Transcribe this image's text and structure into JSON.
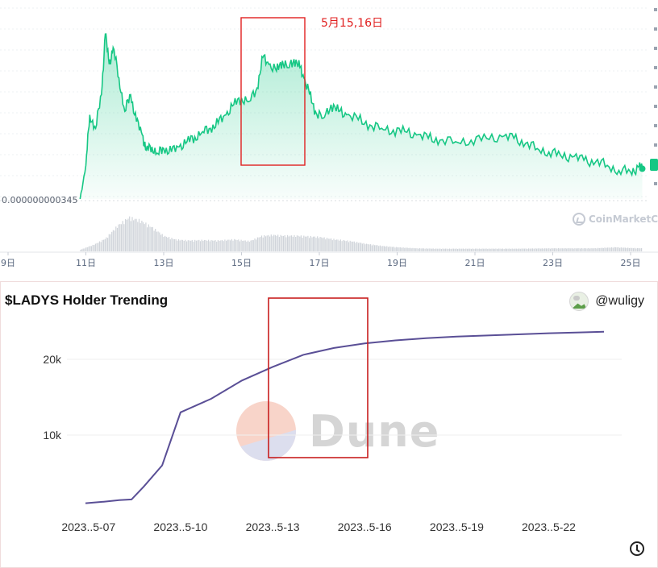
{
  "top_chart": {
    "price_label": "0.000000000345",
    "annotation_text": "5月15,16日",
    "watermark_text": "CoinMarketCap",
    "x_ticks": [
      "9日",
      "11日",
      "13日",
      "15日",
      "17日",
      "19日",
      "21日",
      "23日",
      "25日"
    ],
    "colors": {
      "line": "#16c784",
      "fill": "#16c784",
      "annotation": "#e02020",
      "volume": "#d0d4da"
    }
  },
  "bottom_chart": {
    "title": "$LADYS Holder Trending",
    "username": "@wuligy",
    "watermark_text": "Dune",
    "colors": {
      "line": "#5a4f96",
      "highlight": "#c81e1e"
    }
  },
  "chart_data": [
    {
      "type": "area",
      "title": "",
      "xlabel": "",
      "ylabel": "",
      "categories": [
        "9日",
        "11日",
        "13日",
        "15日",
        "17日",
        "19日",
        "21日",
        "23日",
        "25日"
      ],
      "x_day_range": [
        9,
        25.3
      ],
      "price_points": [
        [
          10.85,
          0.0
        ],
        [
          11.0,
          0.2
        ],
        [
          11.1,
          0.5
        ],
        [
          11.25,
          0.42
        ],
        [
          11.4,
          0.62
        ],
        [
          11.5,
          0.98
        ],
        [
          11.6,
          0.8
        ],
        [
          11.7,
          0.9
        ],
        [
          11.85,
          0.72
        ],
        [
          12.0,
          0.52
        ],
        [
          12.15,
          0.62
        ],
        [
          12.3,
          0.46
        ],
        [
          12.45,
          0.38
        ],
        [
          12.55,
          0.29
        ],
        [
          12.7,
          0.31
        ],
        [
          12.85,
          0.27
        ],
        [
          13.0,
          0.3
        ],
        [
          13.2,
          0.28
        ],
        [
          13.4,
          0.31
        ],
        [
          13.6,
          0.34
        ],
        [
          13.8,
          0.37
        ],
        [
          14.0,
          0.4
        ],
        [
          14.2,
          0.42
        ],
        [
          14.4,
          0.45
        ],
        [
          14.6,
          0.5
        ],
        [
          14.8,
          0.56
        ],
        [
          15.0,
          0.6
        ],
        [
          15.2,
          0.58
        ],
        [
          15.4,
          0.66
        ],
        [
          15.55,
          0.84
        ],
        [
          15.7,
          0.8
        ],
        [
          15.9,
          0.76
        ],
        [
          16.05,
          0.82
        ],
        [
          16.2,
          0.78
        ],
        [
          16.35,
          0.83
        ],
        [
          16.5,
          0.78
        ],
        [
          16.6,
          0.72
        ],
        [
          16.75,
          0.62
        ],
        [
          16.9,
          0.52
        ],
        [
          17.1,
          0.48
        ],
        [
          17.3,
          0.56
        ],
        [
          17.5,
          0.52
        ],
        [
          17.7,
          0.5
        ],
        [
          18.0,
          0.47
        ],
        [
          18.3,
          0.44
        ],
        [
          18.6,
          0.42
        ],
        [
          18.9,
          0.41
        ],
        [
          19.2,
          0.4
        ],
        [
          19.5,
          0.38
        ],
        [
          19.8,
          0.36
        ],
        [
          20.1,
          0.35
        ],
        [
          20.5,
          0.34
        ],
        [
          20.9,
          0.35
        ],
        [
          21.3,
          0.36
        ],
        [
          21.7,
          0.37
        ],
        [
          22.0,
          0.36
        ],
        [
          22.3,
          0.33
        ],
        [
          22.6,
          0.3
        ],
        [
          22.9,
          0.28
        ],
        [
          23.2,
          0.26
        ],
        [
          23.5,
          0.25
        ],
        [
          23.8,
          0.23
        ],
        [
          24.1,
          0.22
        ],
        [
          24.4,
          0.2
        ],
        [
          24.7,
          0.17
        ],
        [
          25.0,
          0.16
        ],
        [
          25.2,
          0.19
        ],
        [
          25.3,
          0.18
        ]
      ],
      "volume_points": [
        [
          10.85,
          0.05
        ],
        [
          11.2,
          0.2
        ],
        [
          11.5,
          0.38
        ],
        [
          11.8,
          0.75
        ],
        [
          12.1,
          1.0
        ],
        [
          12.4,
          0.9
        ],
        [
          12.7,
          0.7
        ],
        [
          13.0,
          0.45
        ],
        [
          13.3,
          0.35
        ],
        [
          13.6,
          0.32
        ],
        [
          14.0,
          0.33
        ],
        [
          14.4,
          0.32
        ],
        [
          14.8,
          0.35
        ],
        [
          15.2,
          0.3
        ],
        [
          15.5,
          0.45
        ],
        [
          15.8,
          0.48
        ],
        [
          16.1,
          0.46
        ],
        [
          16.4,
          0.46
        ],
        [
          16.7,
          0.44
        ],
        [
          17.0,
          0.42
        ],
        [
          17.4,
          0.35
        ],
        [
          17.8,
          0.3
        ],
        [
          18.2,
          0.22
        ],
        [
          18.6,
          0.16
        ],
        [
          19.0,
          0.12
        ],
        [
          19.5,
          0.09
        ],
        [
          20.0,
          0.08
        ],
        [
          21.0,
          0.08
        ],
        [
          22.0,
          0.08
        ],
        [
          23.0,
          0.09
        ],
        [
          24.0,
          0.09
        ],
        [
          24.6,
          0.12
        ],
        [
          25.0,
          0.1
        ],
        [
          25.3,
          0.09
        ]
      ],
      "highlight_day_range": [
        15.1,
        16.9
      ],
      "grid": true
    },
    {
      "type": "line",
      "title": "$LADYS Holder Trending",
      "xlabel": "",
      "ylabel": "",
      "x_tick_labels": [
        "2023..5-07",
        "2023..5-10",
        "2023..5-13",
        "2023..5-16",
        "2023..5-19",
        "2023..5-22"
      ],
      "y_tick_labels": [
        "10k",
        "20k"
      ],
      "ylim": [
        0,
        25000
      ],
      "x_range": [
        7,
        25
      ],
      "series": [
        {
          "x": [
            6.9,
            7.5,
            8.0,
            8.4,
            8.8,
            9.4,
            10.0,
            11.0,
            12.0,
            13.0,
            14.0,
            15.0,
            16.0,
            17.0,
            18.0,
            19.0,
            20.0,
            21.0,
            22.0,
            23.0,
            23.8
          ],
          "values": [
            1000,
            1200,
            1400,
            1500,
            3200,
            6000,
            13000,
            14800,
            17200,
            19000,
            20600,
            21500,
            22100,
            22500,
            22800,
            23000,
            23150,
            23300,
            23450,
            23550,
            23650
          ]
        }
      ],
      "highlight_x_range": [
        13.0,
        16.2
      ],
      "grid": true
    }
  ]
}
